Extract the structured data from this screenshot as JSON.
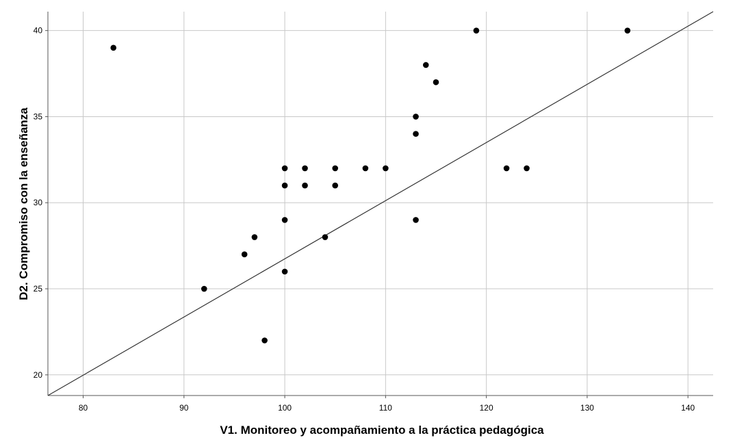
{
  "chart_data": {
    "type": "scatter",
    "xlabel": "V1. Monitoreo y acompañamiento a la práctica pedagógica",
    "ylabel": "D2. Compromiso con la enseñanza",
    "xlim": [
      76.5,
      142.5
    ],
    "ylim": [
      18.8,
      41.1
    ],
    "x_ticks": [
      80,
      90,
      100,
      110,
      120,
      130,
      140
    ],
    "y_ticks": [
      20,
      25,
      30,
      35,
      40
    ],
    "x_tick_labels": [
      "80",
      "90",
      "100",
      "110",
      "120",
      "130",
      "140"
    ],
    "y_tick_labels": [
      "20",
      "25",
      "30",
      "35",
      "40"
    ],
    "grid": true,
    "points": [
      {
        "x": 83,
        "y": 39
      },
      {
        "x": 92,
        "y": 25
      },
      {
        "x": 96,
        "y": 27
      },
      {
        "x": 97,
        "y": 28
      },
      {
        "x": 98,
        "y": 22
      },
      {
        "x": 100,
        "y": 32
      },
      {
        "x": 100,
        "y": 31
      },
      {
        "x": 100,
        "y": 29
      },
      {
        "x": 100,
        "y": 26
      },
      {
        "x": 102,
        "y": 32
      },
      {
        "x": 102,
        "y": 31
      },
      {
        "x": 104,
        "y": 28
      },
      {
        "x": 105,
        "y": 32
      },
      {
        "x": 105,
        "y": 31
      },
      {
        "x": 108,
        "y": 32
      },
      {
        "x": 110,
        "y": 32
      },
      {
        "x": 113,
        "y": 35
      },
      {
        "x": 113,
        "y": 34
      },
      {
        "x": 113,
        "y": 29
      },
      {
        "x": 114,
        "y": 38
      },
      {
        "x": 115,
        "y": 37
      },
      {
        "x": 119,
        "y": 40
      },
      {
        "x": 122,
        "y": 32
      },
      {
        "x": 124,
        "y": 32
      },
      {
        "x": 134,
        "y": 40
      }
    ],
    "reference_line": {
      "x1": 76.5,
      "y1": 18.8,
      "x2": 142.5,
      "y2": 41.1
    },
    "colors": {
      "points": "#000000",
      "grid": "#c8c8c8",
      "line": "#333333",
      "axis": "#555555"
    }
  }
}
